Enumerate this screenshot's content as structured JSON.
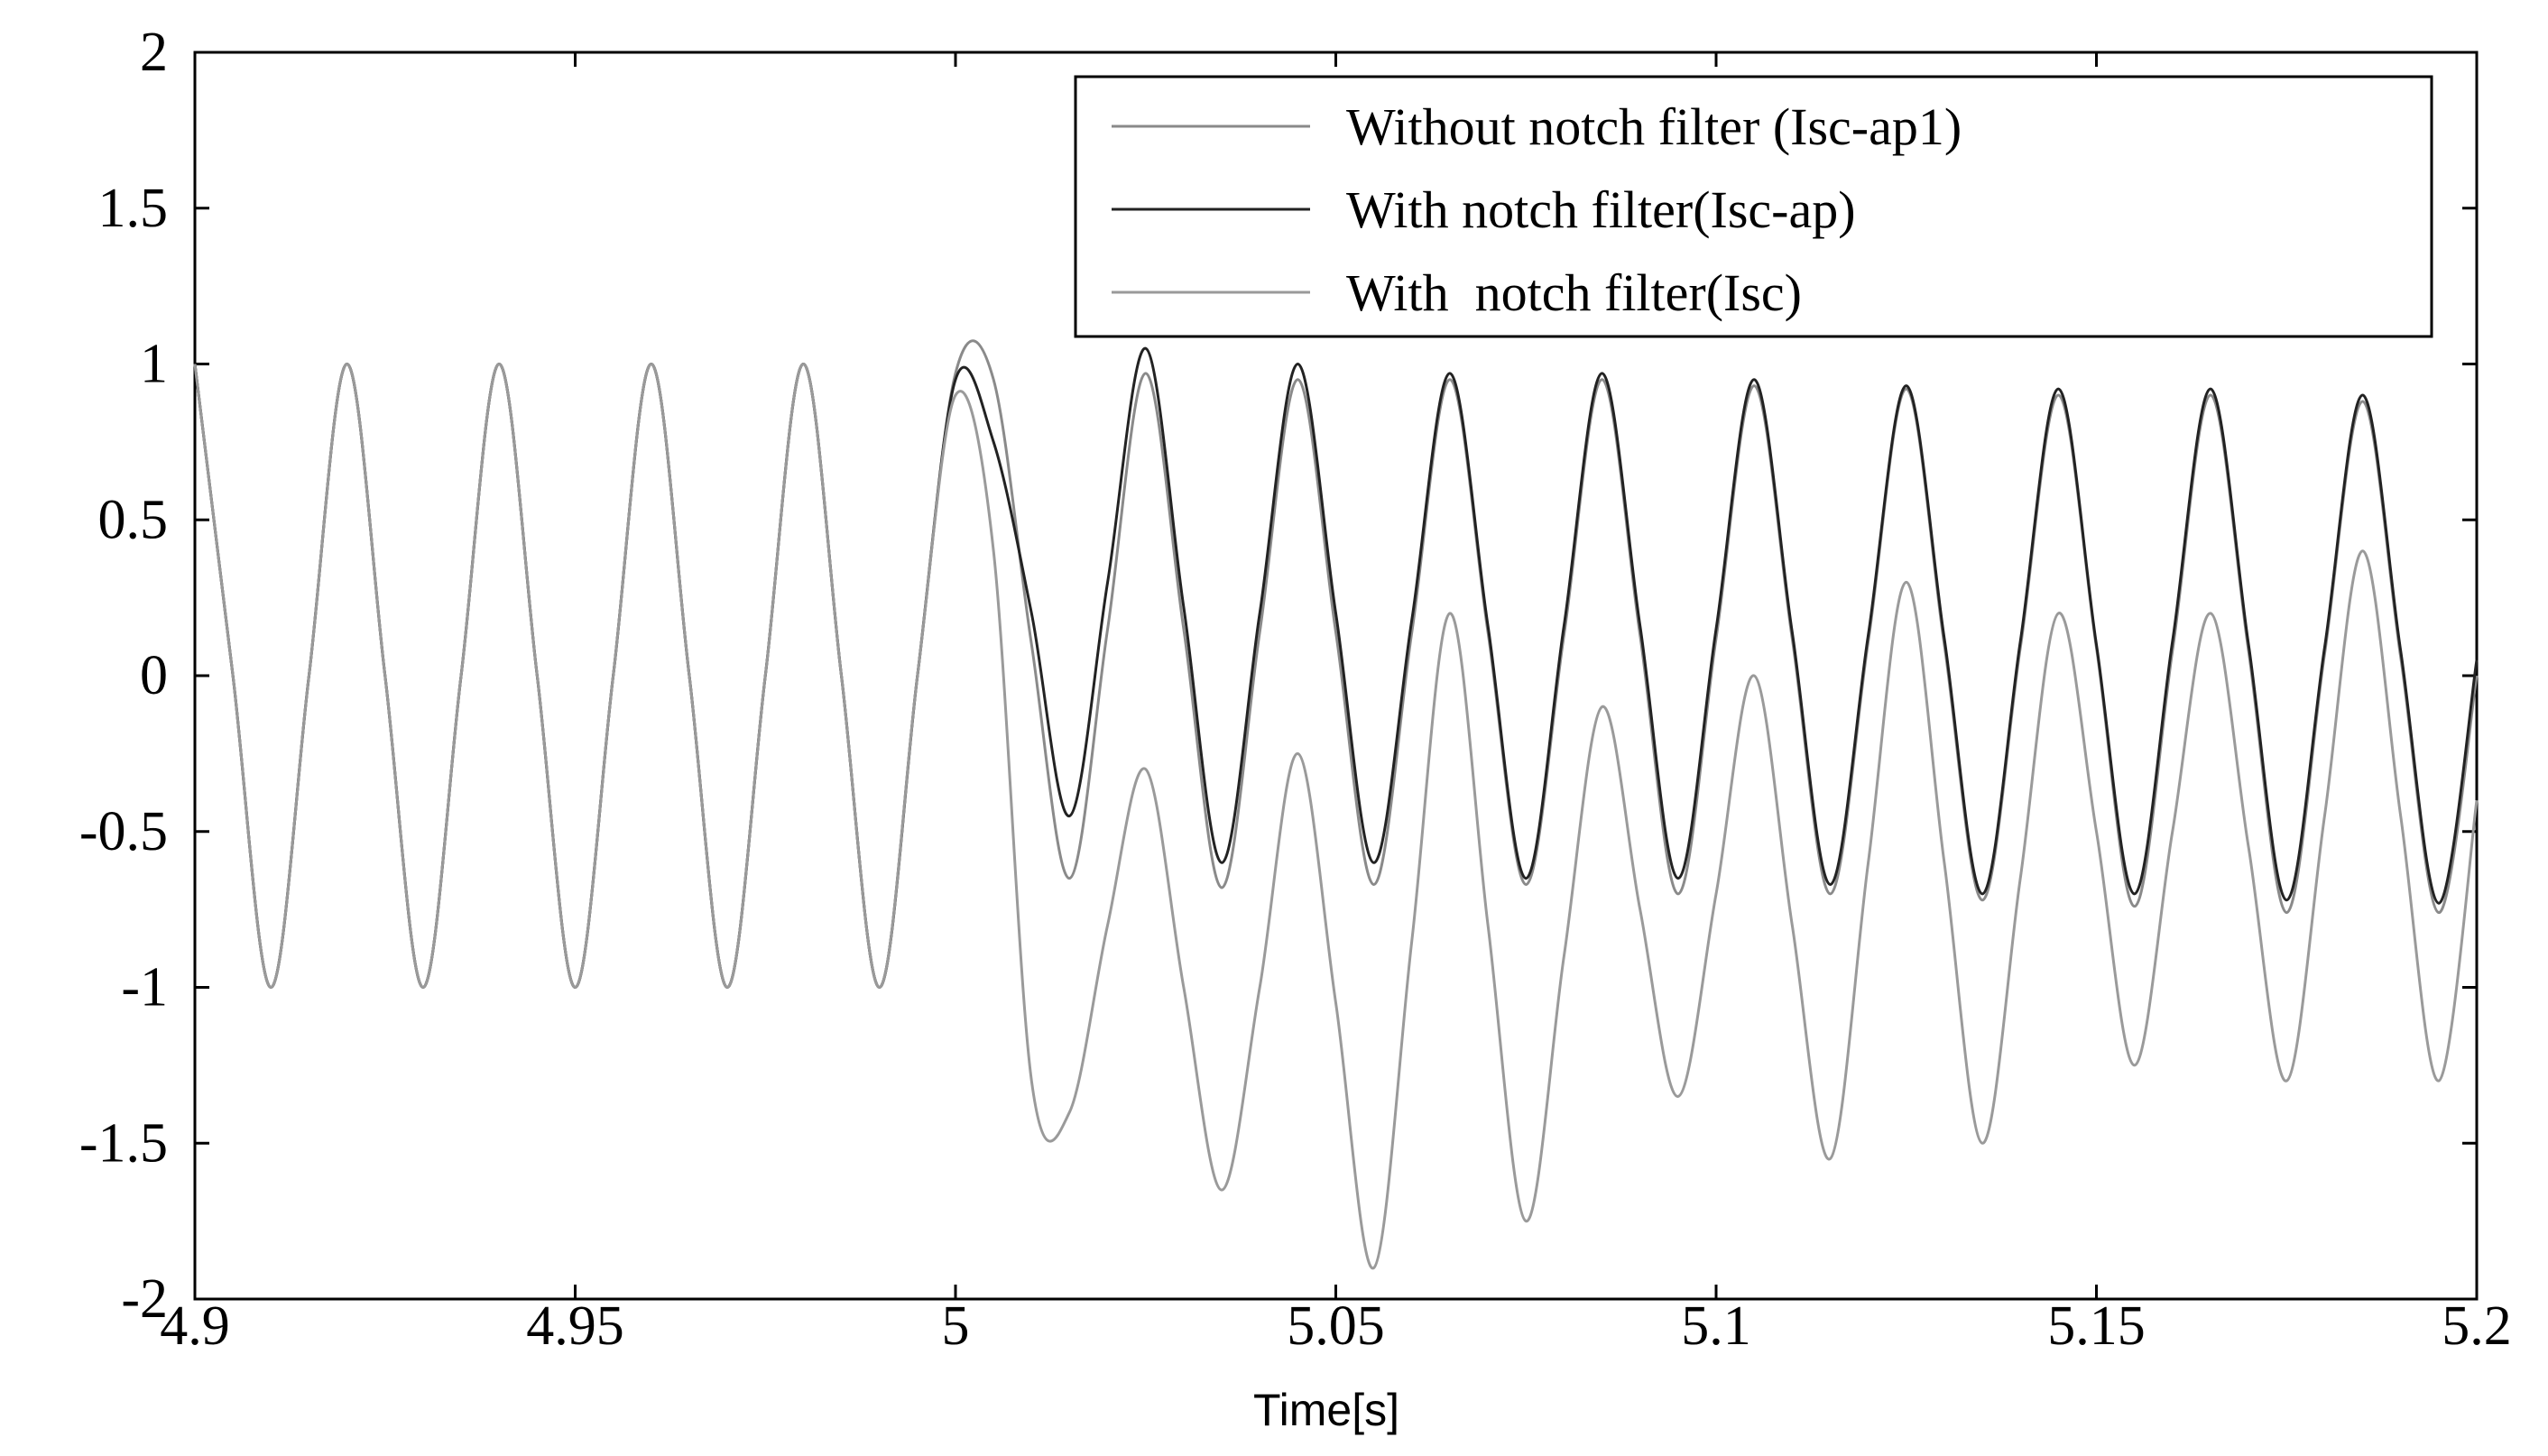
{
  "chart_data": {
    "type": "line",
    "x_label": "Time[s]",
    "xlim": [
      4.9,
      5.2
    ],
    "ylim": [
      -2,
      2
    ],
    "xticks": [
      4.9,
      4.95,
      5,
      5.05,
      5.1,
      5.15,
      5.2
    ],
    "yticks": [
      -2,
      -1.5,
      -1,
      -0.5,
      0,
      0.5,
      1,
      1.5,
      2
    ],
    "legend": "upper right",
    "x": [
      4.9,
      4.905,
      4.91,
      4.915,
      4.92,
      4.925,
      4.93,
      4.935,
      4.94,
      4.945,
      4.95,
      4.955,
      4.96,
      4.965,
      4.97,
      4.975,
      4.98,
      4.985,
      4.99,
      4.995,
      5,
      5.005,
      5.01,
      5.015,
      5.02,
      5.025,
      5.03,
      5.035,
      5.04,
      5.045,
      5.05,
      5.055,
      5.06,
      5.065,
      5.07,
      5.075,
      5.08,
      5.085,
      5.09,
      5.095,
      5.1,
      5.105,
      5.11,
      5.115,
      5.12,
      5.125,
      5.13,
      5.135,
      5.14,
      5.145,
      5.15,
      5.155,
      5.16,
      5.165,
      5.17,
      5.175,
      5.18,
      5.185,
      5.19,
      5.195,
      5.2
    ],
    "series": [
      {
        "name": "Without notch filter (Isc-ap1)",
        "color": "#8a8a8a",
        "values": [
          1,
          0,
          -1,
          0,
          1,
          0,
          -1,
          0,
          1,
          0,
          -1,
          0,
          1,
          0,
          -1,
          0,
          1,
          0,
          -1,
          0,
          0.97,
          0.95,
          0.1,
          -0.65,
          0.15,
          0.97,
          0.15,
          -0.68,
          0.14,
          0.95,
          0.14,
          -0.67,
          0.14,
          0.95,
          0.14,
          -0.67,
          0.13,
          0.95,
          0.13,
          -0.7,
          0.12,
          0.93,
          0.12,
          -0.7,
          0.11,
          0.92,
          0.1,
          -0.72,
          0.09,
          0.9,
          0.09,
          -0.74,
          0.08,
          0.9,
          0.08,
          -0.76,
          0.07,
          0.88,
          0.06,
          -0.76,
          0
        ]
      },
      {
        "name": "With notch filter(Isc-ap)",
        "color": "#222222",
        "values": [
          1,
          0,
          -1,
          0,
          1,
          0,
          -1,
          0,
          1,
          0,
          -1,
          0,
          1,
          0,
          -1,
          0,
          1,
          0,
          -1,
          0,
          0.95,
          0.75,
          0.2,
          -0.45,
          0.3,
          1.05,
          0.22,
          -0.6,
          0.2,
          1,
          0.2,
          -0.6,
          0.18,
          0.97,
          0.16,
          -0.65,
          0.16,
          0.97,
          0.16,
          -0.65,
          0.15,
          0.95,
          0.14,
          -0.67,
          0.13,
          0.93,
          0.12,
          -0.7,
          0.11,
          0.92,
          0.1,
          -0.7,
          0.11,
          0.92,
          0.1,
          -0.72,
          0.09,
          0.9,
          0.08,
          -0.73,
          0.05
        ]
      },
      {
        "name": "With  notch filter(Isc)",
        "color": "#9a9a9a",
        "values": [
          1,
          0,
          -1,
          0,
          1,
          0,
          -1,
          0,
          1,
          0,
          -1,
          0,
          1,
          0,
          -1,
          0,
          1,
          0,
          -1,
          0,
          0.9,
          0.4,
          -1.3,
          -1.4,
          -0.8,
          -0.3,
          -1,
          -1.65,
          -1,
          -0.25,
          -1.05,
          -1.9,
          -0.85,
          0.2,
          -0.8,
          -1.75,
          -0.9,
          -0.1,
          -0.75,
          -1.35,
          -0.7,
          0,
          -0.8,
          -1.55,
          -0.6,
          0.3,
          -0.6,
          -1.5,
          -0.65,
          0.2,
          -0.5,
          -1.25,
          -0.5,
          0.2,
          -0.55,
          -1.3,
          -0.45,
          0.4,
          -0.45,
          -1.3,
          -0.4
        ]
      }
    ]
  }
}
